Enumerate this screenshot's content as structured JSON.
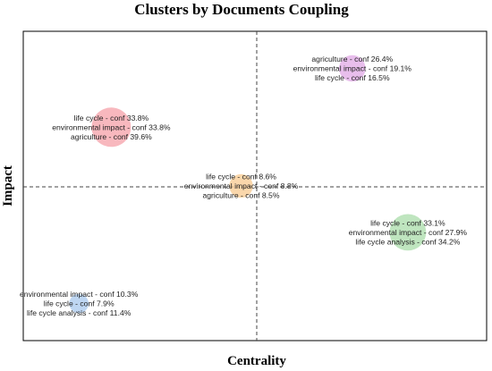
{
  "chart_data": {
    "type": "scatter",
    "title": "Clusters by Documents Coupling",
    "xlabel": "Centrality",
    "ylabel": "Impact",
    "grid": false,
    "reference_lines": "dashed median lines on both axes",
    "points": [
      {
        "x": 0.71,
        "y": 0.88,
        "size": 0.55,
        "color": "#e0a8e6",
        "labels": [
          "agriculture - conf 26.4%",
          "environmental impact - conf 19.1%",
          "life cycle - conf 16.5%"
        ]
      },
      {
        "x": 0.19,
        "y": 0.69,
        "size": 1.0,
        "color": "#f5a0a8",
        "labels": [
          "life cycle - conf 33.8%",
          "environmental impact - conf 33.8%",
          "agriculture - conf 39.6%"
        ]
      },
      {
        "x": 0.47,
        "y": 0.5,
        "size": 0.45,
        "color": "#f8c98f",
        "labels": [
          "life cycle - conf 8.6%",
          "environmental impact - conf 8.8%",
          "agriculture - conf 8.5%"
        ]
      },
      {
        "x": 0.83,
        "y": 0.35,
        "size": 0.9,
        "color": "#a9dca9",
        "labels": [
          "life cycle - conf 33.1%",
          "environmental impact - conf 27.9%",
          "life cycle analysis - conf 34.2%"
        ]
      },
      {
        "x": 0.12,
        "y": 0.12,
        "size": 0.3,
        "color": "#a8c8ee",
        "labels": [
          "environmental impact - conf 10.3%",
          "life cycle - conf 7.9%",
          "life cycle analysis - conf 11.4%"
        ]
      }
    ]
  }
}
